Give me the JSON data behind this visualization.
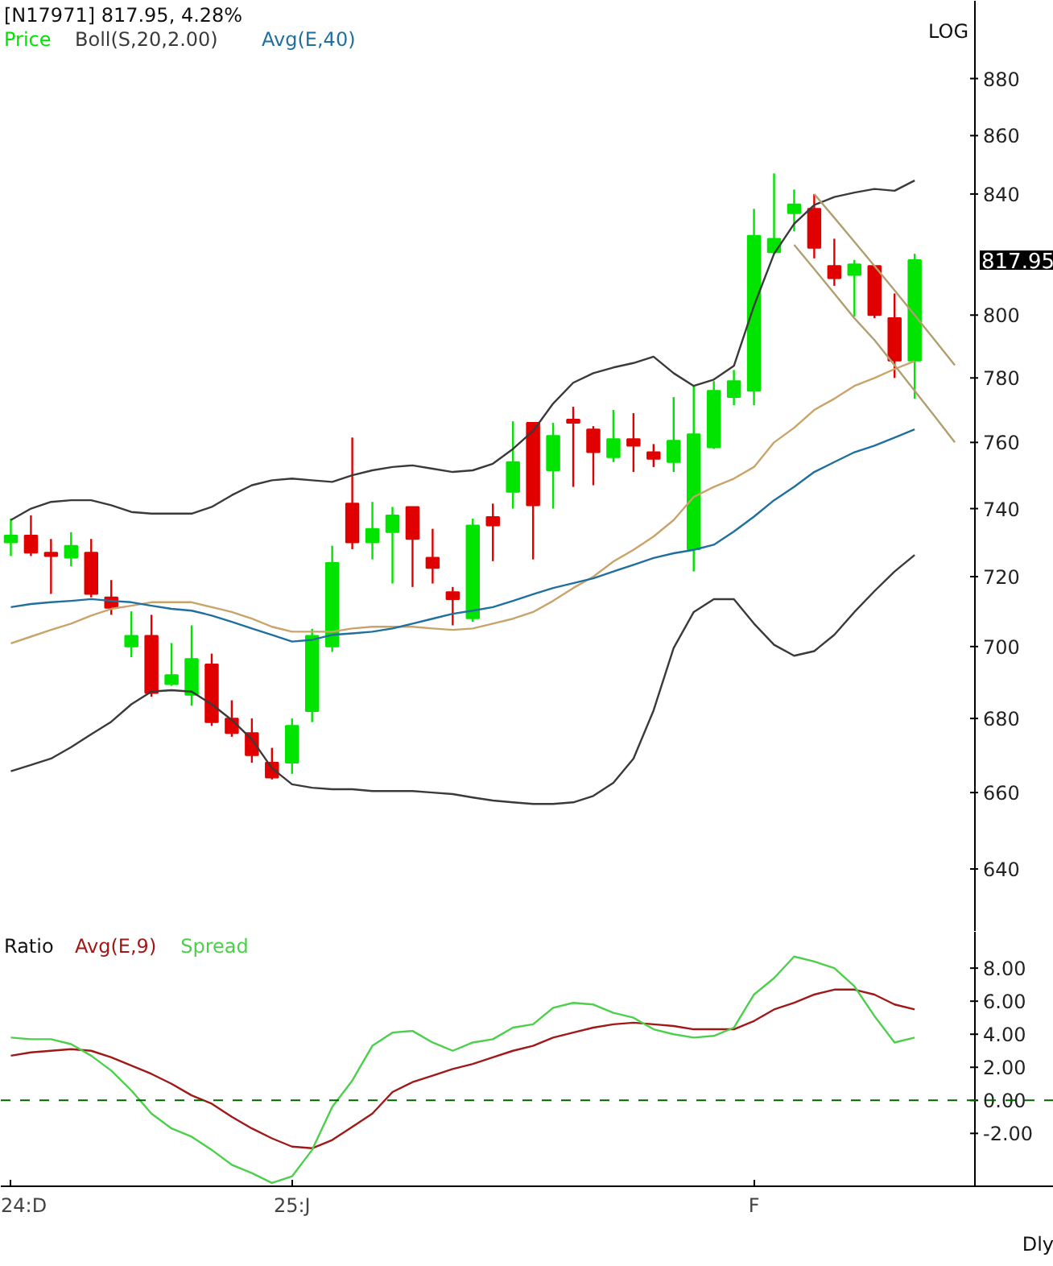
{
  "chart_data": [
    {
      "type": "candlestick",
      "title": "[N17971] 817.95, 4.28%",
      "categories": [
        null,
        null,
        null,
        null,
        null,
        null,
        null,
        null,
        null,
        null,
        null,
        null,
        null,
        null,
        null,
        null,
        null,
        null,
        null,
        null,
        null,
        null,
        null,
        null,
        null,
        null,
        null,
        null,
        null,
        null,
        null,
        null,
        null,
        null,
        null,
        null,
        null,
        null,
        null,
        null,
        null,
        null,
        null,
        null,
        null,
        null,
        null,
        null
      ],
      "ylim": [
        624,
        908
      ],
      "yticks": [
        640,
        660,
        680,
        700,
        720,
        740,
        760,
        780,
        800,
        840,
        860,
        880
      ],
      "log": "y",
      "legend": "top left",
      "tick_labels": "y",
      "annotations": [
        "LOG",
        "817.95"
      ],
      "series": [
        {
          "type": "candlestick",
          "name": "Price",
          "ohlc": [
            [
              730,
              737,
              726,
              732
            ],
            [
              732,
              738,
              726,
              727
            ],
            [
              727,
              731,
              715,
              726
            ],
            [
              725.5,
              733,
              723,
              729
            ],
            [
              727,
              731,
              714,
              715
            ],
            [
              714,
              719,
              709,
              711
            ],
            [
              700,
              710,
              697,
              703
            ],
            [
              703,
              709,
              686,
              687
            ],
            [
              689.5,
              701,
              689,
              692
            ],
            [
              686.5,
              706,
              683.5,
              696.5
            ],
            [
              695,
              698,
              678,
              679
            ],
            [
              680,
              685,
              675,
              676
            ],
            [
              676,
              680,
              668,
              670
            ],
            [
              668,
              672,
              663.5,
              664
            ],
            [
              668,
              680,
              665,
              678
            ],
            [
              682,
              705,
              679,
              703
            ],
            [
              700,
              729,
              698.5,
              724
            ],
            [
              741.5,
              761.5,
              728,
              730
            ],
            [
              730,
              742,
              725,
              734
            ],
            [
              733,
              740.5,
              718,
              738
            ],
            [
              740.5,
              740.5,
              717,
              731
            ],
            [
              725.5,
              734,
              718,
              722.5
            ],
            [
              715.5,
              717,
              706,
              713.5
            ],
            [
              708,
              737,
              707,
              735
            ],
            [
              737.5,
              741.5,
              724.5,
              735
            ],
            [
              745,
              766.5,
              740,
              754
            ],
            [
              766,
              766,
              725,
              741
            ],
            [
              751.5,
              766,
              740,
              762
            ],
            [
              767,
              771,
              746.5,
              766
            ],
            [
              764,
              765,
              747,
              757
            ],
            [
              755.5,
              770,
              754,
              761
            ],
            [
              761,
              769,
              751,
              759
            ],
            [
              757,
              759.5,
              752.5,
              755
            ],
            [
              754,
              774,
              751,
              760.5
            ],
            [
              728,
              777.5,
              721.5,
              762.5
            ],
            [
              758.5,
              779,
              758,
              776
            ],
            [
              774,
              782.5,
              771.5,
              779
            ],
            [
              776,
              835,
              771.5,
              826
            ],
            [
              820.5,
              847,
              820,
              825
            ],
            [
              833.5,
              841.5,
              827.5,
              836.5
            ],
            [
              835,
              840,
              818.5,
              822
            ],
            [
              816,
              825,
              809.5,
              812
            ],
            [
              813,
              818,
              799.5,
              816.5
            ],
            [
              816,
              816,
              799,
              800
            ],
            [
              799,
              807,
              780,
              785.5
            ],
            [
              785.5,
              820,
              773.5,
              817.95
            ],
            null,
            null
          ],
          "colors": [
            "#00e400",
            "#e00000",
            "#e00000",
            "#00e400",
            "#e00000",
            "#e00000",
            "#00e400",
            "#e00000",
            "#00e400",
            "#00e400",
            "#e00000",
            "#e00000",
            "#e00000",
            "#e00000",
            "#00e400",
            "#00e400",
            "#00e400",
            "#e00000",
            "#00e400",
            "#00e400",
            "#e00000",
            "#e00000",
            "#e00000",
            "#00e400",
            "#e00000",
            "#00e400",
            "#e00000",
            "#00e400",
            "#e00000",
            "#e00000",
            "#00e400",
            "#e00000",
            "#e00000",
            "#00e400",
            "#00e400",
            "#00e400",
            "#00e400",
            "#00e400",
            "#00e400",
            "#00e400",
            "#e00000",
            "#e00000",
            "#00e400",
            "#e00000",
            "#e00000",
            "#00e400",
            null,
            null
          ]
        },
        {
          "type": "line",
          "name": "Boll(S,20,2.00)",
          "color": "#3a3a3a",
          "values": [
            736.6,
            740,
            742,
            742.5,
            742.5,
            741,
            739,
            738.5,
            738.5,
            738.5,
            740.5,
            744,
            747,
            748.5,
            749,
            748.5,
            748,
            750,
            751.5,
            752.5,
            753,
            752,
            751,
            751.5,
            753.5,
            758,
            763.5,
            772,
            778.5,
            781.5,
            783.3,
            784.7,
            786.7,
            781.5,
            777.5,
            779.5,
            783.8,
            803,
            820,
            830,
            836.3,
            839,
            840.5,
            841.7,
            841.1,
            844.6,
            null,
            null
          ]
        },
        {
          "type": "line",
          "color": "#c9a46a",
          "values": [
            700.9,
            702.8,
            704.7,
            706.5,
            708.8,
            710.7,
            711.6,
            712.6,
            712.6,
            712.6,
            711.2,
            709.8,
            707.9,
            705.6,
            704.2,
            704.2,
            704.2,
            705.1,
            705.6,
            705.6,
            705.6,
            705.1,
            704.7,
            705.1,
            706.5,
            707.9,
            709.8,
            713,
            716.7,
            720,
            724.4,
            727.8,
            731.7,
            736.6,
            743.5,
            746.5,
            749,
            752.5,
            760,
            764.5,
            770,
            773.5,
            777.5,
            780,
            782.8,
            785.3,
            null,
            null
          ]
        },
        {
          "type": "line",
          "color": "#3a3a3a",
          "values": [
            665.7,
            667.4,
            669.1,
            672.2,
            675.7,
            679.1,
            683.9,
            687.4,
            687.8,
            687.4,
            683.9,
            679.6,
            674.3,
            666.5,
            662.2,
            661.3,
            660.9,
            660.9,
            660.4,
            660.4,
            660.4,
            660,
            659.6,
            658.7,
            657.9,
            657.4,
            657,
            657,
            657.4,
            659.1,
            662.6,
            669.1,
            682.2,
            699.6,
            709.8,
            713.5,
            713.5,
            706.5,
            700.5,
            697.4,
            698.7,
            703.3,
            709.8,
            715.8,
            721.5,
            726.3,
            null,
            null
          ]
        },
        {
          "type": "line",
          "name": "Avg(E,40)",
          "color": "#1f6f9f",
          "values": [
            711.2,
            712.1,
            712.6,
            713,
            713.5,
            713,
            712.6,
            711.6,
            710.7,
            710.2,
            708.8,
            707,
            705.1,
            703.3,
            701.4,
            701.9,
            703.3,
            703.7,
            704.2,
            705.1,
            706.5,
            707.9,
            709.3,
            710.2,
            711.2,
            713,
            714.9,
            716.7,
            718.1,
            719.5,
            721.5,
            723.4,
            725.4,
            726.8,
            727.8,
            729.3,
            733.2,
            737.6,
            742.5,
            746.5,
            751,
            754,
            757,
            759,
            761.5,
            764,
            null,
            null
          ]
        },
        {
          "type": "line",
          "color": "#b0a070",
          "values": [
            null,
            null,
            null,
            null,
            null,
            null,
            null,
            null,
            null,
            null,
            null,
            null,
            null,
            null,
            null,
            null,
            null,
            null,
            null,
            null,
            null,
            null,
            null,
            null,
            null,
            null,
            null,
            null,
            null,
            null,
            null,
            null,
            null,
            null,
            null,
            null,
            null,
            null,
            null,
            null,
            840,
            832,
            824,
            816,
            808,
            800,
            792,
            784
          ]
        },
        {
          "type": "line",
          "color": "#b0a070",
          "values": [
            null,
            null,
            null,
            null,
            null,
            null,
            null,
            null,
            null,
            null,
            null,
            null,
            null,
            null,
            null,
            null,
            null,
            null,
            null,
            null,
            null,
            null,
            null,
            null,
            null,
            null,
            null,
            null,
            null,
            null,
            null,
            null,
            null,
            null,
            null,
            null,
            null,
            null,
            null,
            823,
            815,
            807,
            799,
            792,
            784,
            776,
            768,
            760
          ]
        }
      ]
    },
    {
      "type": "line",
      "title": "Ratio",
      "categories": [
        "24:D",
        null,
        null,
        null,
        null,
        null,
        null,
        null,
        null,
        null,
        null,
        null,
        null,
        null,
        "25:J",
        null,
        null,
        null,
        null,
        null,
        null,
        null,
        null,
        null,
        null,
        null,
        null,
        null,
        null,
        null,
        null,
        null,
        null,
        null,
        null,
        null,
        null,
        "F",
        null,
        null,
        null,
        null,
        null,
        null,
        null,
        null,
        null,
        null
      ],
      "ylim": [
        -5.2,
        10.2
      ],
      "yticks": [
        {
          "value": 8,
          "label": "8.00"
        },
        {
          "value": 6,
          "label": "6.00"
        },
        {
          "value": 4,
          "label": "4.00"
        },
        {
          "value": 2,
          "label": "2.00"
        },
        {
          "value": 0,
          "label": "0.00"
        },
        {
          "value": -2,
          "label": "-2.00"
        }
      ],
      "legend": "top left",
      "annotations": [
        "Dly"
      ],
      "ref_lines": [
        {
          "axis": "y",
          "value": 0,
          "color": "#006400",
          "line_style": "dashed"
        }
      ],
      "series": [
        {
          "name": "Avg(E,9)",
          "color": "#a01818",
          "values": [
            2.7,
            2.9,
            3.0,
            3.1,
            3.0,
            2.6,
            2.1,
            1.6,
            1.0,
            0.3,
            -0.2,
            -1.0,
            -1.7,
            -2.3,
            -2.8,
            -2.9,
            -2.4,
            -1.6,
            -0.8,
            0.5,
            1.1,
            1.5,
            1.9,
            2.2,
            2.6,
            3.0,
            3.3,
            3.8,
            4.1,
            4.4,
            4.6,
            4.7,
            4.6,
            4.5,
            4.3,
            4.3,
            4.3,
            4.8,
            5.5,
            5.9,
            6.4,
            6.7,
            6.7,
            6.4,
            5.8,
            5.5,
            null,
            null
          ]
        },
        {
          "name": "Spread",
          "color": "#4cd04c",
          "values": [
            3.8,
            3.7,
            3.7,
            3.4,
            2.7,
            1.8,
            0.6,
            -0.8,
            -1.7,
            -2.2,
            -3.0,
            -3.9,
            -4.4,
            -5.0,
            -4.6,
            -3.0,
            -0.4,
            1.2,
            3.3,
            4.1,
            4.2,
            3.5,
            3.0,
            3.5,
            3.7,
            4.4,
            4.6,
            5.6,
            5.9,
            5.8,
            5.3,
            5.0,
            4.3,
            4.0,
            3.8,
            3.9,
            4.4,
            6.4,
            7.4,
            8.7,
            8.4,
            8.0,
            6.9,
            5.1,
            3.5,
            3.8,
            null,
            null
          ]
        }
      ]
    }
  ]
}
